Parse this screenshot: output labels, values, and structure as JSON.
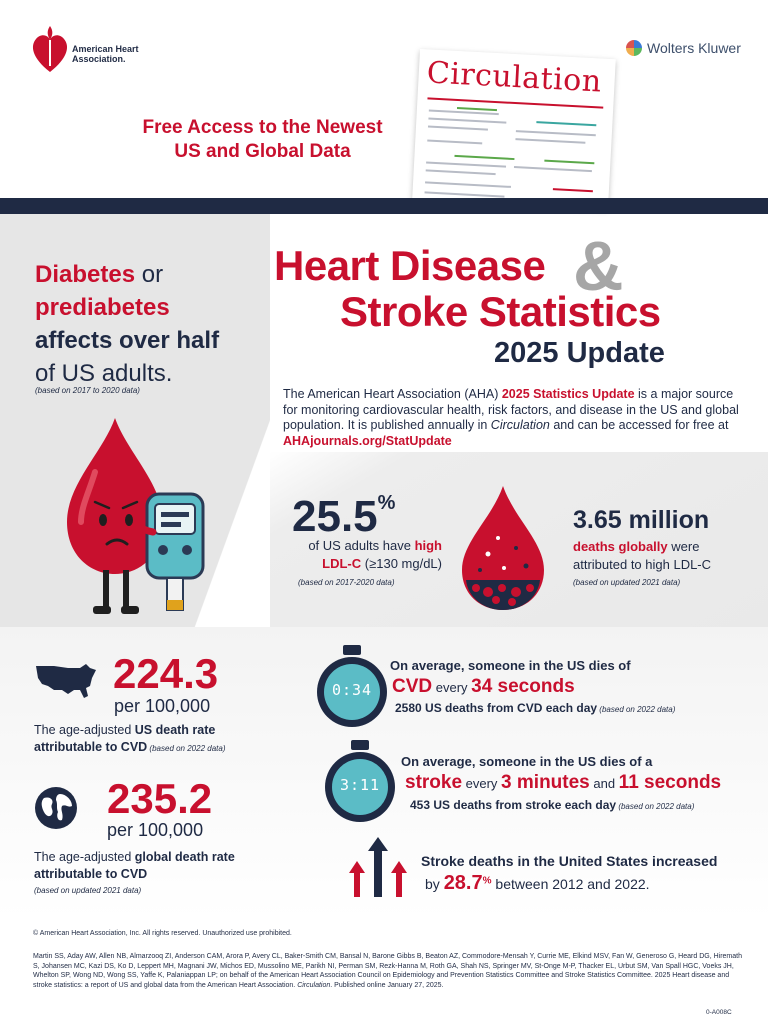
{
  "header": {
    "aha_name": "American Heart Association.",
    "wk_name": "Wolters Kluwer",
    "free_access_line1": "Free Access to the Newest",
    "free_access_line2": "US and Global Data",
    "journal_title": "Circulation"
  },
  "title": {
    "line1": "Heart Disease",
    "amp": "&",
    "line2": "Stroke Statistics",
    "line3": "2025 Update"
  },
  "intro": {
    "part1": "The American Heart Association (AHA) ",
    "hl1": "2025 Statistics Update",
    "part2": " is a major source for monitoring cardiovascular health, risk factors, and disease in the US and global population. It is published annually in ",
    "journal": "Circulation",
    "part3": " and can be accessed for free at ",
    "link": "AHAjournals.org/StatUpdate"
  },
  "diabetes": {
    "w1": "Diabetes",
    "w2": " or",
    "w3": "prediabetes",
    "w4": "affects over half",
    "w5": "of US adults.",
    "note": "(based on 2017 to 2020 data)"
  },
  "ldl": {
    "value": "25.5",
    "unit": "%",
    "desc1": "of US adults have ",
    "desc_hl": "high LDL-C",
    "desc2": " (≥130 mg/dL)",
    "note": "(based on 2017-2020 data)"
  },
  "global_ldl": {
    "value": "3.65 million",
    "desc_hl": "deaths globally",
    "desc1": " were attributed to high LDL-C",
    "note": "(based on updated 2021 data)"
  },
  "us_rate": {
    "value": "224.3",
    "per": "per 100,000",
    "desc1": "The age-adjusted ",
    "desc_hl": "US death rate attributable to CVD",
    "note": " (based on 2022 data)"
  },
  "global_rate": {
    "value": "235.2",
    "per": "per 100,000",
    "desc1": "The age-adjusted ",
    "desc_hl": "global death rate attributable to CVD",
    "note": "(based on updated 2021 data)"
  },
  "cvd": {
    "timer": "0:34",
    "line1": "On average, someone in the US dies of",
    "cvd": "CVD",
    "every": " every ",
    "secs": "34 seconds",
    "line3": "2580 US deaths from CVD each day",
    "note": " (based on 2022 data)"
  },
  "stroke": {
    "timer": "3:11",
    "line1": "On average, someone in the US dies of a",
    "stroke": "stroke",
    "every": " every ",
    "mins": "3 minutes",
    "and": " and ",
    "secs": "11 seconds",
    "line3": "453 US deaths from stroke each day",
    "note": " (based on 2022 data)"
  },
  "increase": {
    "line1": "Stroke deaths in the United States increased",
    "by": "by ",
    "value": "28.7",
    "unit": "%",
    "rest": " between 2012 and 2022."
  },
  "footer": {
    "copyright": "© American Heart Association, Inc. All rights reserved. Unauthorized use prohibited.",
    "refs_a": "Martin SS, Aday AW, Allen NB, Almarzooq ZI, Anderson CAM, Arora P, Avery CL, Baker-Smith CM, Bansal N, Barone Gibbs B, Beaton AZ, Commodore-Mensah Y, Currie ME, Elkind MSV, Fan W, Generoso G, Heard DG, Hiremath S, Johansen MC, Kazi DS, Ko D, Leppert MH, Magnani JW, Michos ED, Mussolino ME, Parikh NI, Perman SM, Rezk-Hanna M, Roth GA, Shah NS, Springer MV, St-Onge M-P, Thacker EL, Urbut SM, Van Spall HGC, Voeks JH, Whelton SP, Wong ND, Wong SS, Yaffe K, Palaniappan LP; on behalf of the American Heart Association Council on Epidemiology and Prevention Statistics Committee and Stroke Statistics Committee. 2025 Heart disease and stroke statistics: a report of US and global data from the American Heart Association. ",
    "refs_journal": "Circulation",
    "refs_b": ". Published online January 27, 2025.",
    "code": "0-A008C"
  },
  "colors": {
    "red": "#c8102e",
    "navy": "#1f2a44",
    "teal": "#5bbcc6",
    "grey": "#a6a6a6"
  }
}
